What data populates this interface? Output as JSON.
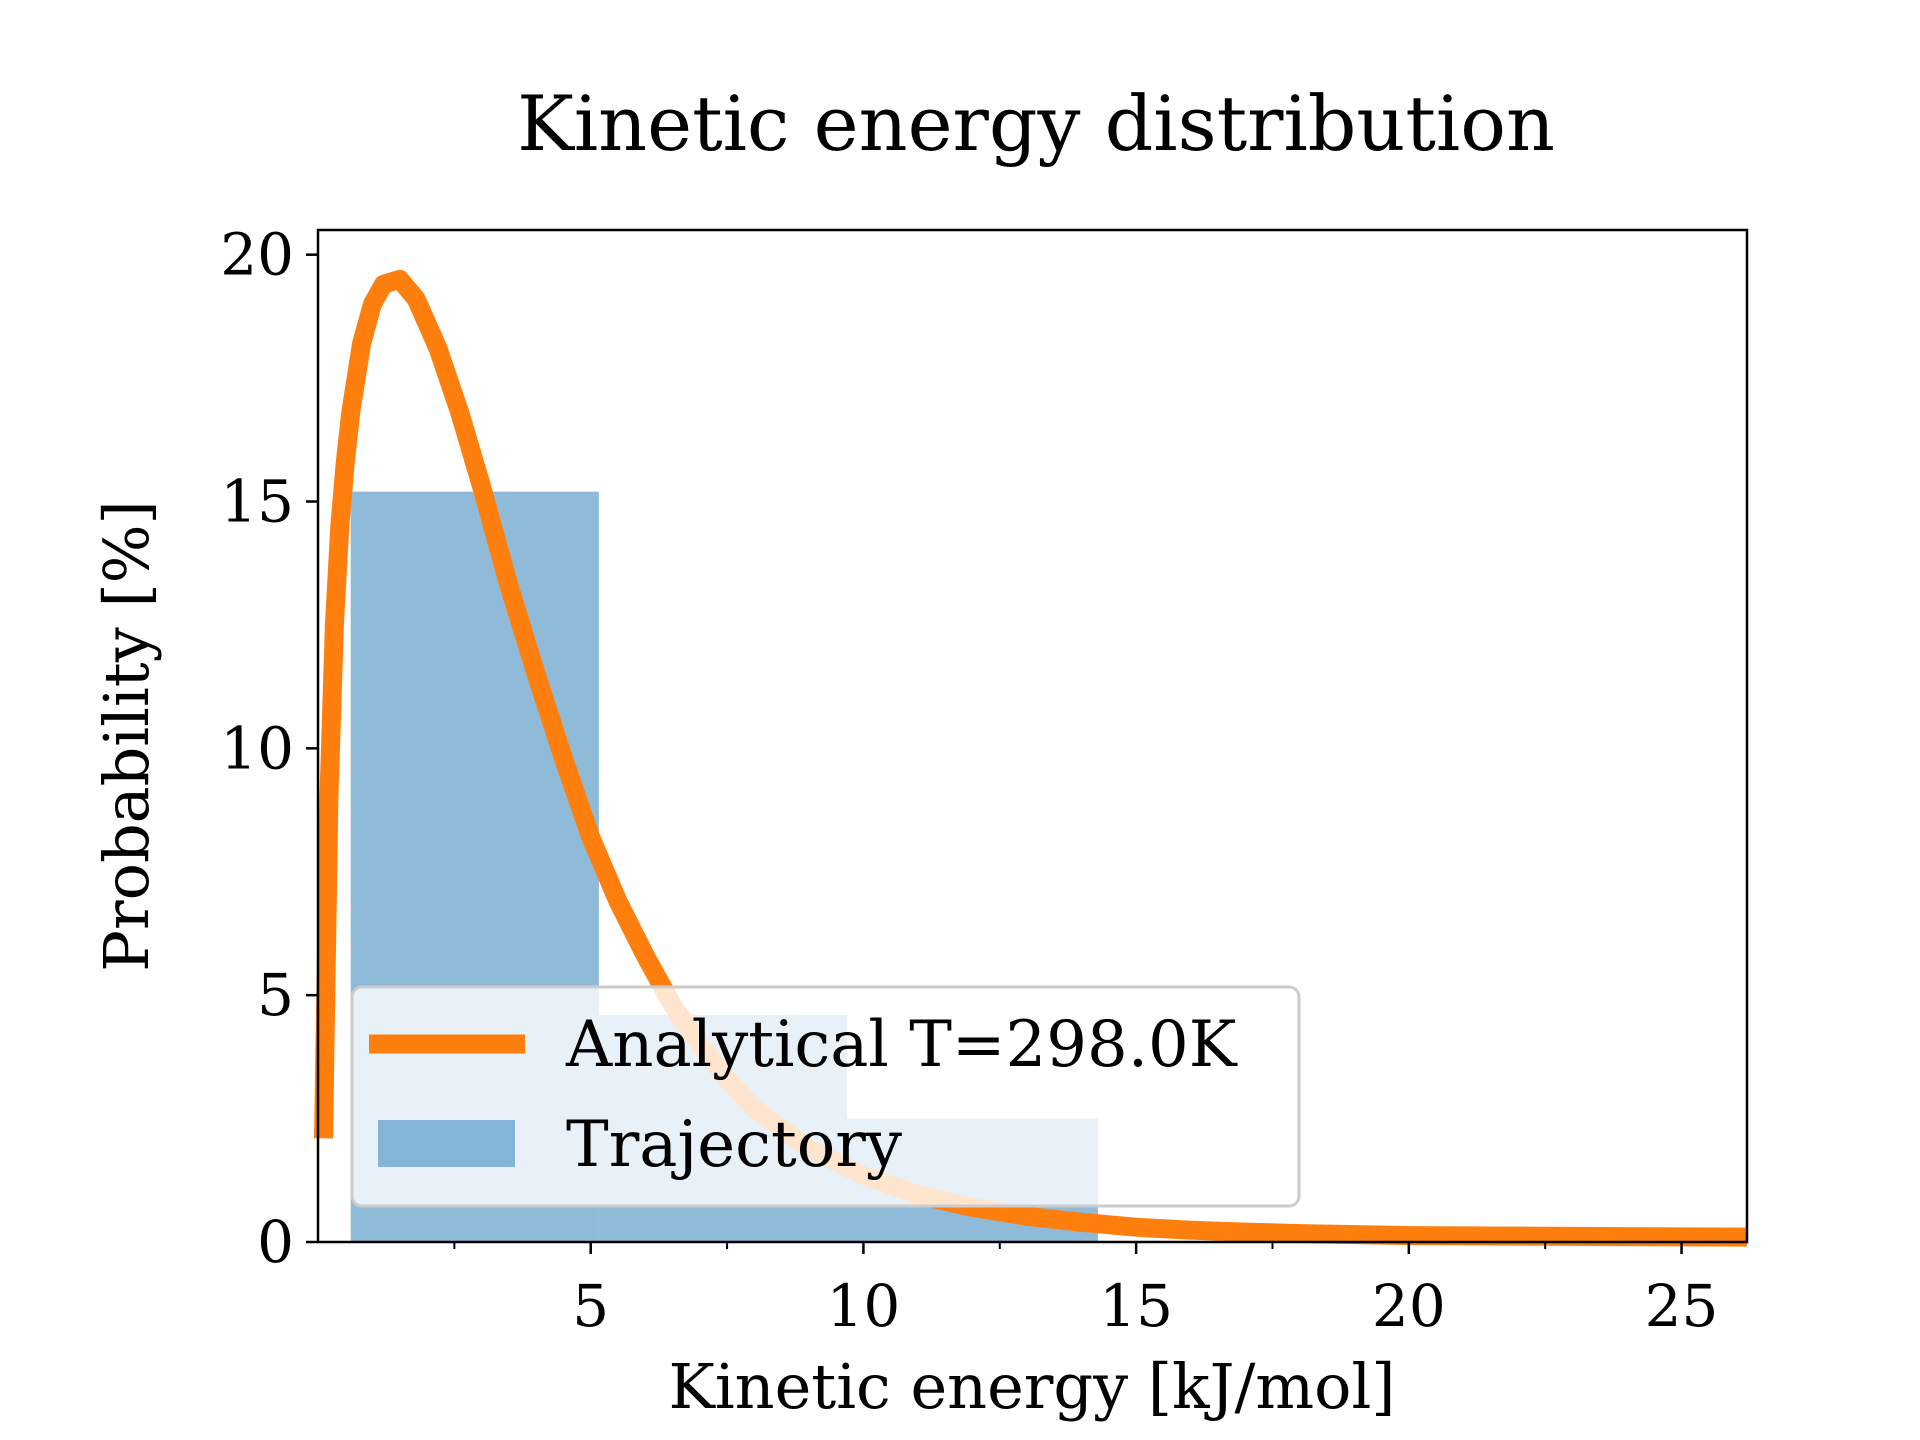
{
  "colors": {
    "curve": "#ff7f0e",
    "bars": "#1f77b4",
    "bar_opacity": 0.5,
    "axis": "#000000",
    "legend_border": "#cccccc"
  },
  "chart_data": {
    "type": "bar",
    "title": "Kinetic energy distribution",
    "xlabel": "Kinetic energy [kJ/mol]",
    "ylabel": "Probability [%]",
    "xlim": [
      0,
      26.2
    ],
    "ylim": [
      0,
      20.5
    ],
    "grid": false,
    "legend_placement": "lower-left",
    "x_ticks": [
      5,
      10,
      15,
      20,
      25
    ],
    "x_tick_labels": [
      "5",
      "10",
      "15",
      "20",
      "25"
    ],
    "x_minor_ticks": [
      2.5,
      7.5,
      12.5,
      17.5,
      22.5
    ],
    "y_ticks": [
      0,
      5,
      10,
      15,
      20
    ],
    "y_tick_labels": [
      "0",
      "5",
      "10",
      "15",
      "20"
    ],
    "series": [
      {
        "name": "Trajectory",
        "kind": "histogram",
        "bins": [
          {
            "x0": 0.6,
            "x1": 5.15,
            "value": 15.2
          },
          {
            "x0": 5.15,
            "x1": 9.7,
            "value": 4.6
          },
          {
            "x0": 9.7,
            "x1": 14.3,
            "value": 2.5
          }
        ]
      },
      {
        "name": "Analytical T=298.0K",
        "kind": "line",
        "temperature_K": 298.0,
        "x": [
          0.1,
          0.2,
          0.3,
          0.4,
          0.5,
          0.6,
          0.8,
          1.0,
          1.2,
          1.5,
          1.8,
          2.2,
          2.6,
          3.0,
          3.5,
          4.0,
          4.5,
          5.0,
          5.5,
          6.0,
          6.5,
          7.0,
          7.5,
          8.0,
          9.0,
          10.0,
          11.0,
          12.0,
          13.0,
          14.0,
          15.0,
          16.0,
          17.0,
          18.0,
          20.0,
          22.0,
          24.0,
          26.2
        ],
        "y": [
          2.1,
          9.0,
          12.5,
          14.5,
          15.8,
          16.8,
          18.2,
          19.0,
          19.4,
          19.5,
          19.1,
          18.1,
          16.8,
          15.3,
          13.3,
          11.5,
          9.8,
          8.2,
          6.9,
          5.8,
          4.8,
          4.0,
          3.3,
          2.7,
          1.9,
          1.35,
          0.95,
          0.7,
          0.52,
          0.4,
          0.3,
          0.24,
          0.2,
          0.17,
          0.13,
          0.12,
          0.11,
          0.1
        ]
      }
    ],
    "legend_entries": [
      "Analytical T=298.0K",
      "Trajectory"
    ]
  }
}
